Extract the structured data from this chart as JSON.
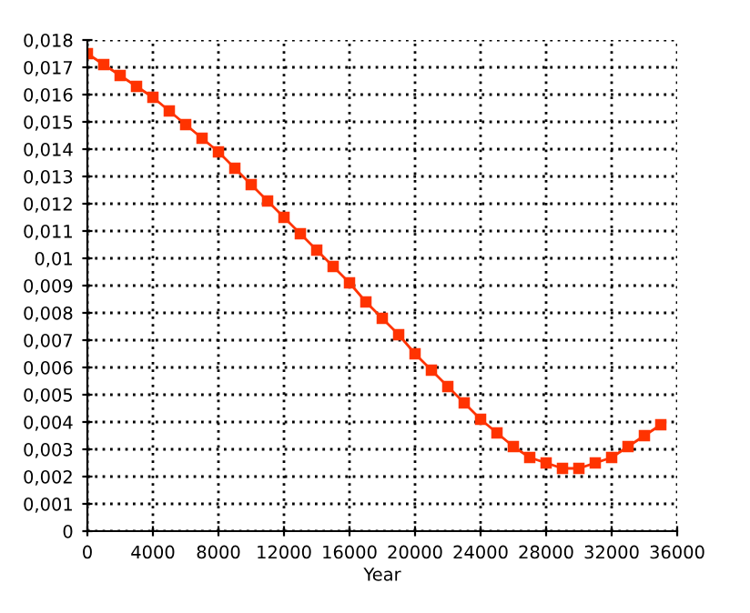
{
  "chart_data": {
    "type": "line",
    "xlabel": "Year",
    "x": [
      0,
      1000,
      2000,
      3000,
      4000,
      5000,
      6000,
      7000,
      8000,
      9000,
      10000,
      11000,
      12000,
      13000,
      14000,
      15000,
      16000,
      17000,
      18000,
      19000,
      20000,
      21000,
      22000,
      23000,
      24000,
      25000,
      26000,
      27000,
      28000,
      29000,
      30000,
      31000,
      32000,
      33000,
      34000,
      35000
    ],
    "series": [
      {
        "color": "#ff3300",
        "values": [
          0.0175,
          0.0171,
          0.0167,
          0.0163,
          0.0159,
          0.0154,
          0.0149,
          0.0144,
          0.0139,
          0.0133,
          0.0127,
          0.0121,
          0.0115,
          0.0109,
          0.0103,
          0.0097,
          0.0091,
          0.0084,
          0.0078,
          0.0072,
          0.0065,
          0.0059,
          0.0053,
          0.0047,
          0.0041,
          0.0036,
          0.0031,
          0.0027,
          0.0025,
          0.0023,
          0.0023,
          0.0025,
          0.0027,
          0.0031,
          0.0035,
          0.0039
        ]
      }
    ],
    "xlim": [
      0,
      36000
    ],
    "xticks": [
      0,
      4000,
      8000,
      12000,
      16000,
      20000,
      24000,
      28000,
      32000,
      36000
    ],
    "ylim": [
      0,
      0.018
    ],
    "yticks": [
      0,
      {
        "value": 0.001,
        "label": "0,001"
      },
      {
        "value": 0.002,
        "label": "0,002"
      },
      {
        "value": 0.003,
        "label": "0,003"
      },
      {
        "value": 0.004,
        "label": "0,004"
      },
      {
        "value": 0.005,
        "label": "0,005"
      },
      {
        "value": 0.006,
        "label": "0,006"
      },
      {
        "value": 0.007,
        "label": "0,007"
      },
      {
        "value": 0.008,
        "label": "0,008"
      },
      {
        "value": 0.009,
        "label": "0,009"
      },
      {
        "value": 0.01,
        "label": "0,01"
      },
      {
        "value": 0.011,
        "label": "0,011"
      },
      {
        "value": 0.012,
        "label": "0,012"
      },
      {
        "value": 0.013,
        "label": "0,013"
      },
      {
        "value": 0.014,
        "label": "0,014"
      },
      {
        "value": 0.015,
        "label": "0,015"
      },
      {
        "value": 0.016,
        "label": "0,016"
      },
      {
        "value": 0.017,
        "label": "0,017"
      },
      {
        "value": 0.018,
        "label": "0,018"
      }
    ],
    "grid": true,
    "marker": "square",
    "line_style": "solid",
    "legend": false
  }
}
